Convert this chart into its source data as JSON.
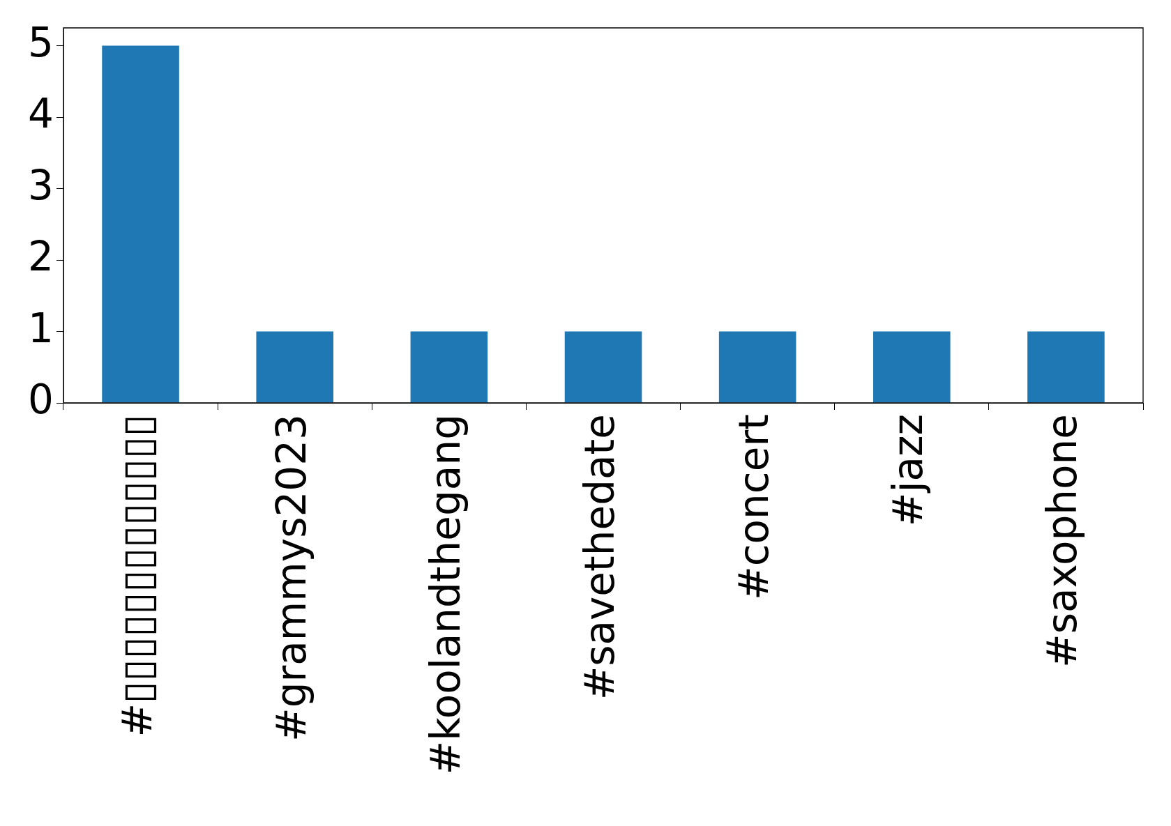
{
  "chart_data": {
    "type": "bar",
    "categories": [
      "#▯▯▯▯▯▯▯▯▯▯▯▯▯",
      "#grammys2023",
      "#koolandthegang",
      "#savethedate",
      "#concert",
      "#jazz",
      "#saxophone"
    ],
    "values": [
      5,
      1,
      1,
      1,
      1,
      1,
      1
    ],
    "color": "#1f77b4",
    "ylim": [
      0,
      5.25
    ],
    "yticks": [
      0,
      1,
      2,
      3,
      4,
      5
    ]
  }
}
